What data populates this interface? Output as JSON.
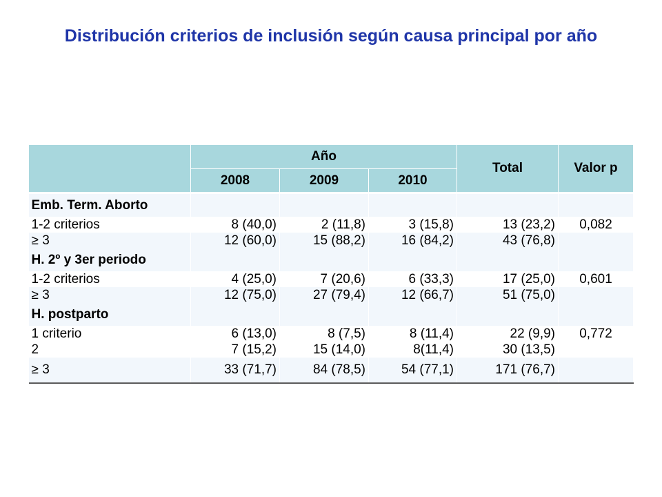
{
  "title": "Distribución criterios de inclusión según causa principal por año",
  "header": {
    "year_group": "Año",
    "years": [
      "2008",
      "2009",
      "2010"
    ],
    "total": "Total",
    "pvalue": "Valor p"
  },
  "sections": [
    {
      "label": "Emb. Term. Aborto",
      "rows": [
        {
          "label": "1-2 criterios",
          "c2008": "8 (40,0)",
          "c2009": "2 (11,8)",
          "c2010": "3 (15,8)",
          "total": "13 (23,2)",
          "p": "0,082"
        },
        {
          "label": "≥ 3",
          "c2008": "12 (60,0)",
          "c2009": "15 (88,2)",
          "c2010": "16 (84,2)",
          "total": "43 (76,8)",
          "p": ""
        }
      ]
    },
    {
      "label": "H. 2º y 3er periodo",
      "rows": [
        {
          "label": "1-2 criterios",
          "c2008": "4 (25,0)",
          "c2009": "7 (20,6)",
          "c2010": "6 (33,3)",
          "total": "17 (25,0)",
          "p": "0,601"
        },
        {
          "label": "≥ 3",
          "c2008": "12 (75,0)",
          "c2009": "27 (79,4)",
          "c2010": "12 (66,7)",
          "total": "51 (75,0)",
          "p": ""
        }
      ]
    },
    {
      "label": "H. postparto",
      "rows": [
        {
          "label": "1 criterio",
          "c2008": "6 (13,0)",
          "c2009": "8 (7,5)",
          "c2010": "8 (11,4)",
          "total": "22 (9,9)",
          "p": "0,772"
        },
        {
          "label": "2",
          "c2008": "7 (15,2)",
          "c2009": "15 (14,0)",
          "c2010": "8(11,4)",
          "total": "30 (13,5)",
          "p": ""
        },
        {
          "label": "≥ 3",
          "c2008": "33 (71,7)",
          "c2009": "84 (78,5)",
          "c2010": "54 (77,1)",
          "total": "171 (76,7)",
          "p": ""
        }
      ]
    }
  ]
}
